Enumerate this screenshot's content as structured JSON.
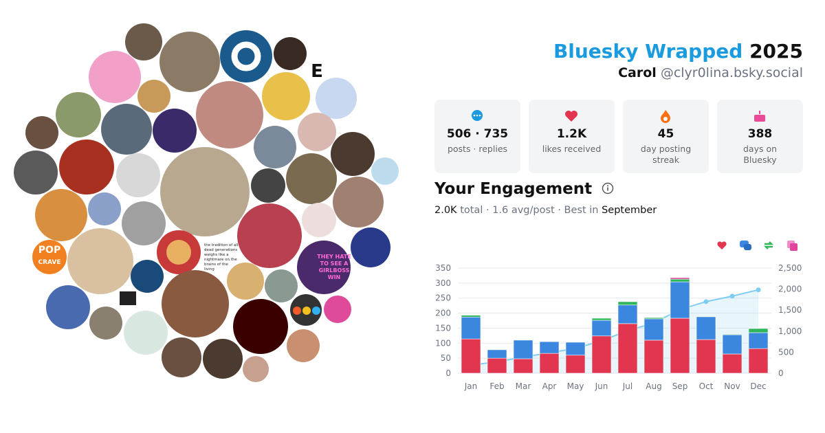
{
  "header": {
    "brand": "Bluesky Wrapped",
    "year": "2025",
    "name": "Carol",
    "handle": "@clyr0lina.bsky.social"
  },
  "stats": [
    {
      "value": "506 · 735",
      "label": "posts · replies"
    },
    {
      "value": "1.2K",
      "label": "likes received"
    },
    {
      "value": "45",
      "label": "day posting streak"
    },
    {
      "value": "388",
      "label": "days on Bluesky"
    }
  ],
  "engagement": {
    "title": "Your Engagement",
    "total": "2.0K",
    "middle": "total · 1.6 avg/post · Best in",
    "best": "September"
  },
  "collage": {
    "letter": "E",
    "pop": [
      "POP",
      "CRAVE"
    ],
    "girlboss": [
      "THEY HATE",
      "TO SEE A",
      "GIRLBOSS",
      "WIN"
    ],
    "quote": [
      "the tradition of all",
      "dead generations",
      "weighs like a",
      "nightmare on the",
      "brains of the",
      "living"
    ]
  },
  "chart_data": {
    "type": "bar",
    "stacked": true,
    "categories": [
      "Jan",
      "Feb",
      "Mar",
      "Apr",
      "May",
      "Jun",
      "Jul",
      "Aug",
      "Sep",
      "Oct",
      "Nov",
      "Dec"
    ],
    "series": [
      {
        "color": "#e2354f",
        "values": [
          114,
          50,
          48,
          66,
          60,
          124,
          165,
          110,
          183,
          112,
          64,
          82
        ]
      },
      {
        "color": "#3b87e0",
        "values": [
          73,
          28,
          62,
          39,
          43,
          52,
          62,
          71,
          121,
          76,
          64,
          53
        ]
      },
      {
        "color": "#2fb65a",
        "values": [
          6,
          0,
          0,
          0,
          0,
          7,
          11,
          4,
          9,
          1,
          2,
          14
        ]
      },
      {
        "color": "#e0449c",
        "values": [
          0,
          0,
          0,
          0,
          0,
          0,
          0,
          0,
          5,
          0,
          0,
          1
        ]
      },
      {
        "type": "line",
        "axis": "y2",
        "color": "#7fcdf0",
        "values": [
          193,
          271,
          381,
          486,
          589,
          772,
          1010,
          1195,
          1513,
          1702,
          1832,
          1982
        ]
      }
    ],
    "ylim": [
      0,
      350
    ],
    "yticks": [
      0,
      50,
      100,
      150,
      200,
      250,
      300,
      350
    ],
    "y2lim": [
      0,
      2500
    ],
    "y2ticks": [
      0,
      500,
      {
        "value": 1000,
        "label": "1,000"
      },
      {
        "value": 1500,
        "label": "1,500"
      },
      {
        "value": 2000,
        "label": "2,000"
      },
      {
        "value": 2500,
        "label": "2,500"
      }
    ],
    "grid": true
  }
}
